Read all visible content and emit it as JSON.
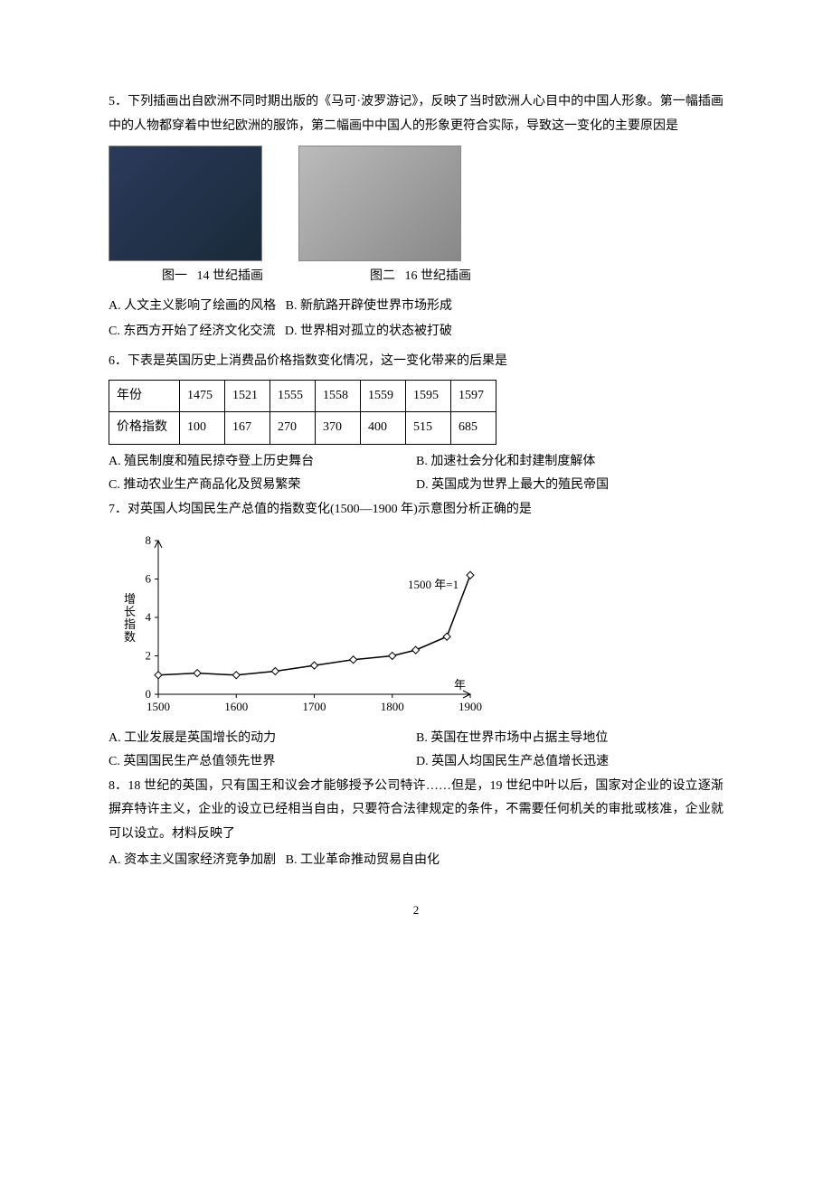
{
  "q5": {
    "text": "5．下列插画出自欧洲不同时期出版的《马可·波罗游记》，反映了当时欧洲人心目中的中国人形象。第一幅插画中的人物都穿着中世纪欧洲的服饰，第二幅画中中国人的形象更符合实际，导致这一变化的主要原因是",
    "caption1_a": "图一",
    "caption1_b": "14 世纪插画",
    "caption2_a": "图二",
    "caption2_b": "16 世纪插画",
    "optA": "A. 人文主义影响了绘画的风格",
    "optB": "B. 新航路开辟使世界市场形成",
    "optC": "C. 东西方开始了经济文化交流",
    "optD": "D. 世界相对孤立的状态被打破"
  },
  "q6": {
    "text": "6．下表是英国历史上消费品价格指数变化情况，这一变化带来的后果是",
    "table": {
      "row1": [
        "年份",
        "1475",
        "1521",
        "1555",
        "1558",
        "1559",
        "1595",
        "1597"
      ],
      "row2": [
        "价格指数",
        "100",
        "167",
        "270",
        "370",
        "400",
        "515",
        "685"
      ]
    },
    "optA": "A. 殖民制度和殖民掠夺登上历史舞台",
    "optB": "B. 加速社会分化和封建制度解体",
    "optC": "C. 推动农业生产商品化及贸易繁荣",
    "optD": "D. 英国成为世界上最大的殖民帝国"
  },
  "q7": {
    "text": "7．对英国人均国民生产总值的指数变化(1500—1900 年)示意图分析正确的是",
    "chart": {
      "type": "line",
      "xlabel": "年",
      "ylabel": "增长指数",
      "x_ticks": [
        "1500",
        "1600",
        "1700",
        "1800",
        "1900"
      ],
      "y_ticks": [
        "0",
        "2",
        "4",
        "6",
        "8"
      ],
      "xlim": [
        1500,
        1900
      ],
      "ylim": [
        0,
        8
      ],
      "annotation": "1500 年=1",
      "points": [
        {
          "x": 1500,
          "y": 1.0
        },
        {
          "x": 1550,
          "y": 1.1
        },
        {
          "x": 1600,
          "y": 1.0
        },
        {
          "x": 1650,
          "y": 1.2
        },
        {
          "x": 1700,
          "y": 1.5
        },
        {
          "x": 1750,
          "y": 1.8
        },
        {
          "x": 1800,
          "y": 2.0
        },
        {
          "x": 1830,
          "y": 2.3
        },
        {
          "x": 1870,
          "y": 3.0
        },
        {
          "x": 1900,
          "y": 6.2
        }
      ],
      "line_color": "#000000",
      "marker_color": "#ffffff",
      "marker_stroke": "#000000",
      "axis_color": "#000000",
      "background": "#ffffff",
      "title_fontsize": 13,
      "label_fontsize": 13,
      "line_width": 1.5,
      "marker_size": 4
    },
    "optA": "A. 工业发展是英国增长的动力",
    "optB": "B. 英国在世界市场中占据主导地位",
    "optC": "C. 英国国民生产总值领先世界",
    "optD": "D. 英国人均国民生产总值增长迅速"
  },
  "q8": {
    "text": "8．18 世纪的英国，只有国王和议会才能够授予公司特许……但是，19 世纪中叶以后，国家对企业的设立逐渐摒弃特许主义，企业的设立已经相当自由，只要符合法律规定的条件，不需要任何机关的审批或核准，企业就可以设立。材料反映了",
    "optA": "A. 资本主义国家经济竞争加剧",
    "optB": "B. 工业革命推动贸易自由化"
  },
  "page_number": "2"
}
